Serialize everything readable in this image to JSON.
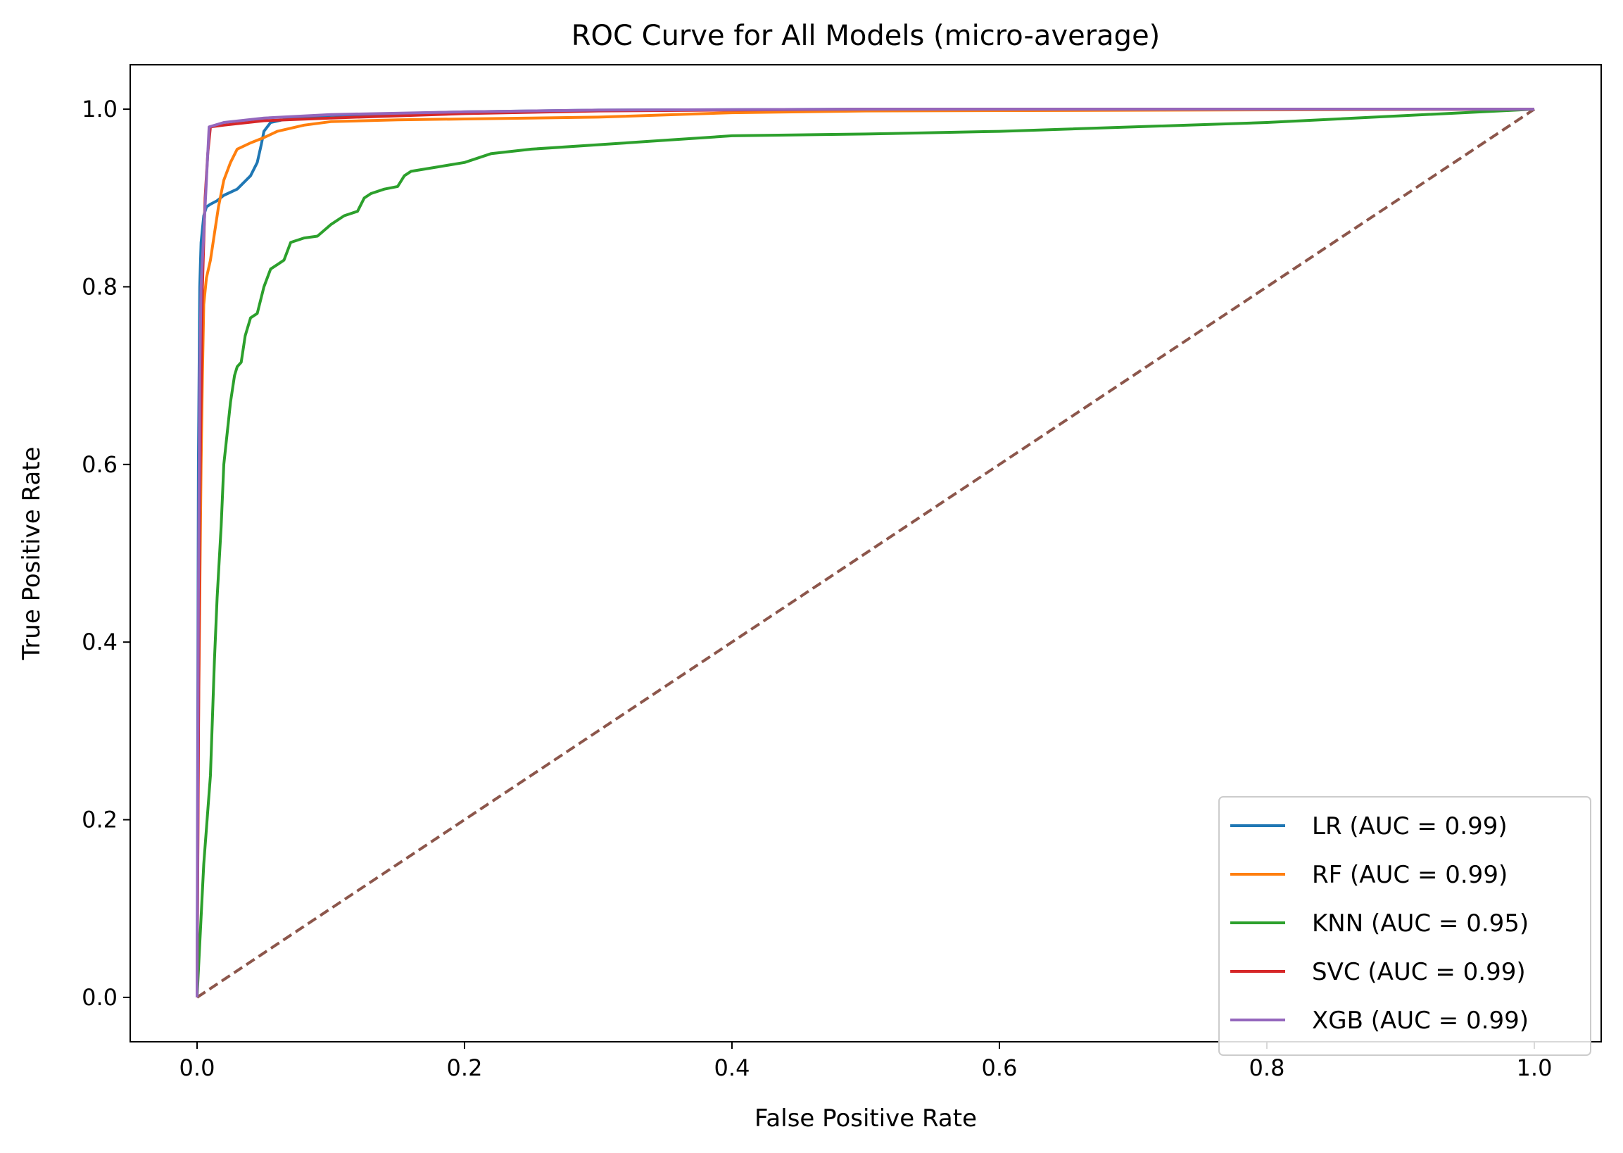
{
  "chart_data": {
    "type": "line",
    "title": "ROC Curve for All Models (micro-average)",
    "xlabel": "False Positive Rate",
    "ylabel": "True Positive Rate",
    "xlim": [
      -0.05,
      1.05
    ],
    "ylim": [
      -0.05,
      1.05
    ],
    "xticks": [
      0.0,
      0.2,
      0.4,
      0.6,
      0.8,
      1.0
    ],
    "yticks": [
      0.0,
      0.2,
      0.4,
      0.6,
      0.8,
      1.0
    ],
    "xtick_labels": [
      "0.0",
      "0.2",
      "0.4",
      "0.6",
      "0.8",
      "1.0"
    ],
    "ytick_labels": [
      "0.0",
      "0.2",
      "0.4",
      "0.6",
      "0.8",
      "1.0"
    ],
    "grid": false,
    "legend_position": "lower-right",
    "series": [
      {
        "name": "LR (AUC = 0.99)",
        "color": "#1f77b4",
        "line_style": "solid",
        "x": [
          0,
          0.001,
          0.002,
          0.003,
          0.005,
          0.007,
          0.01,
          0.015,
          0.02,
          0.03,
          0.04,
          0.045,
          0.048,
          0.05,
          0.055,
          0.07,
          0.1,
          0.2,
          0.3,
          0.5,
          0.7,
          1.0
        ],
        "y": [
          0,
          0.6,
          0.8,
          0.85,
          0.88,
          0.89,
          0.893,
          0.897,
          0.903,
          0.91,
          0.925,
          0.94,
          0.96,
          0.975,
          0.985,
          0.99,
          0.993,
          0.997,
          0.999,
          1.0,
          1.0,
          1.0
        ]
      },
      {
        "name": "RF (AUC = 0.99)",
        "color": "#ff7f0e",
        "line_style": "solid",
        "x": [
          0,
          0.001,
          0.002,
          0.003,
          0.004,
          0.005,
          0.007,
          0.01,
          0.013,
          0.016,
          0.02,
          0.025,
          0.03,
          0.04,
          0.05,
          0.06,
          0.08,
          0.1,
          0.15,
          0.2,
          0.3,
          0.4,
          0.5,
          1.0
        ],
        "y": [
          0,
          0.3,
          0.45,
          0.6,
          0.7,
          0.78,
          0.81,
          0.83,
          0.86,
          0.89,
          0.92,
          0.94,
          0.955,
          0.962,
          0.968,
          0.975,
          0.982,
          0.986,
          0.988,
          0.989,
          0.991,
          0.996,
          0.998,
          1.0
        ]
      },
      {
        "name": "KNN (AUC = 0.95)",
        "color": "#2ca02c",
        "line_style": "solid",
        "x": [
          0,
          0.005,
          0.01,
          0.013,
          0.015,
          0.018,
          0.02,
          0.025,
          0.028,
          0.03,
          0.033,
          0.036,
          0.04,
          0.045,
          0.05,
          0.055,
          0.06,
          0.065,
          0.07,
          0.08,
          0.09,
          0.1,
          0.11,
          0.12,
          0.125,
          0.13,
          0.14,
          0.15,
          0.155,
          0.16,
          0.18,
          0.2,
          0.22,
          0.25,
          0.3,
          0.35,
          0.4,
          0.5,
          0.6,
          0.8,
          1.0
        ],
        "y": [
          0,
          0.15,
          0.25,
          0.38,
          0.45,
          0.53,
          0.6,
          0.67,
          0.7,
          0.71,
          0.715,
          0.745,
          0.765,
          0.77,
          0.8,
          0.82,
          0.825,
          0.83,
          0.85,
          0.855,
          0.857,
          0.87,
          0.88,
          0.885,
          0.9,
          0.905,
          0.91,
          0.913,
          0.925,
          0.93,
          0.935,
          0.94,
          0.95,
          0.955,
          0.96,
          0.965,
          0.97,
          0.972,
          0.975,
          0.985,
          1.0
        ]
      },
      {
        "name": "SVC (AUC = 0.99)",
        "color": "#d62728",
        "line_style": "solid",
        "x": [
          0,
          0.002,
          0.004,
          0.006,
          0.008,
          0.01,
          0.02,
          0.05,
          0.1,
          0.2,
          0.3,
          0.5,
          1.0
        ],
        "y": [
          0,
          0.55,
          0.8,
          0.9,
          0.95,
          0.98,
          0.982,
          0.987,
          0.99,
          0.995,
          0.998,
          1.0,
          1.0
        ]
      },
      {
        "name": "XGB (AUC = 0.99)",
        "color": "#9467bd",
        "line_style": "solid",
        "x": [
          0,
          0.001,
          0.002,
          0.003,
          0.005,
          0.007,
          0.009,
          0.02,
          0.05,
          0.1,
          0.2,
          0.3,
          0.5,
          1.0
        ],
        "y": [
          0,
          0.45,
          0.7,
          0.8,
          0.86,
          0.92,
          0.98,
          0.985,
          0.99,
          0.994,
          0.997,
          0.999,
          1.0,
          1.0
        ]
      },
      {
        "name": "",
        "color": "#8c564b",
        "line_style": "dashed",
        "x": [
          0,
          1
        ],
        "y": [
          0,
          1
        ]
      }
    ]
  }
}
